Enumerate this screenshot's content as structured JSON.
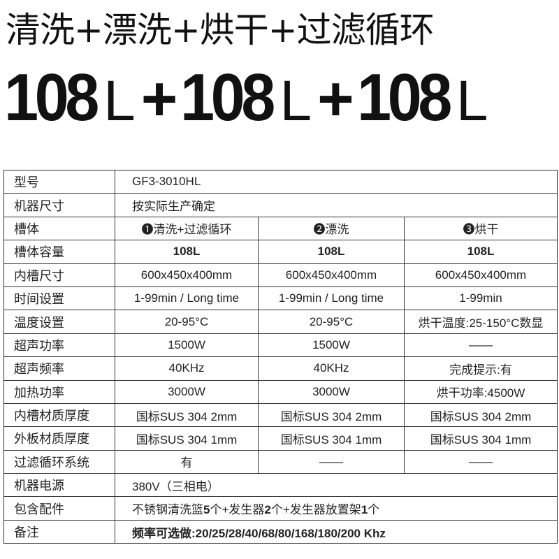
{
  "headline": "清洗+漂洗+烘干+过滤循环",
  "capacity": {
    "num": "108",
    "unit": "L",
    "plus": "+"
  },
  "rows": [
    {
      "k": "型号",
      "v": "GF3-3010HL"
    },
    {
      "k": "机器尺寸",
      "v": "按实际生产确定"
    },
    {
      "k": "槽体",
      "c": [
        "❶清洗+过滤循环",
        "❷漂洗",
        "❸烘干"
      ]
    },
    {
      "k": "槽体容量",
      "c": [
        "108L",
        "108L",
        "108L"
      ]
    },
    {
      "k": "内槽尺寸",
      "c": [
        "600x450x400mm",
        "600x450x400mm",
        "600x450x400mm"
      ]
    },
    {
      "k": "时间设置",
      "c": [
        "1-99min / Long time",
        "1-99min / Long time",
        "1-99min"
      ]
    },
    {
      "k": "温度设置",
      "c": [
        "20-95°C",
        "20-95°C",
        "烘干温度:25-150°C数显"
      ]
    },
    {
      "k": "超声功率",
      "c": [
        "1500W",
        "1500W",
        "——"
      ]
    },
    {
      "k": "超声频率",
      "c": [
        "40KHz",
        "40KHz",
        "完成提示:有"
      ]
    },
    {
      "k": "加热功率",
      "c": [
        "3000W",
        "3000W",
        "烘干功率:4500W"
      ]
    },
    {
      "k": "内槽材质厚度",
      "c": [
        "国标SUS 304 2mm",
        "国标SUS 304 2mm",
        "国标SUS 304 2mm"
      ]
    },
    {
      "k": "外板材质厚度",
      "c": [
        "国标SUS 304 1mm",
        "国标SUS 304 1mm",
        "国标SUS 304 1mm"
      ]
    },
    {
      "k": "过滤循环系统",
      "c": [
        "有",
        "——",
        "——"
      ]
    },
    {
      "k": "机器电源",
      "v": "380V（三相电）"
    },
    {
      "k": "包含配件",
      "parts": [
        "不锈钢清洗篮",
        "5",
        "个+发生器",
        "2",
        "个+发生器放置架",
        "1",
        "个"
      ]
    },
    {
      "k": "备注",
      "v": "频率可选做:20/25/28/40/68/80/168/180/200 Khz"
    }
  ]
}
